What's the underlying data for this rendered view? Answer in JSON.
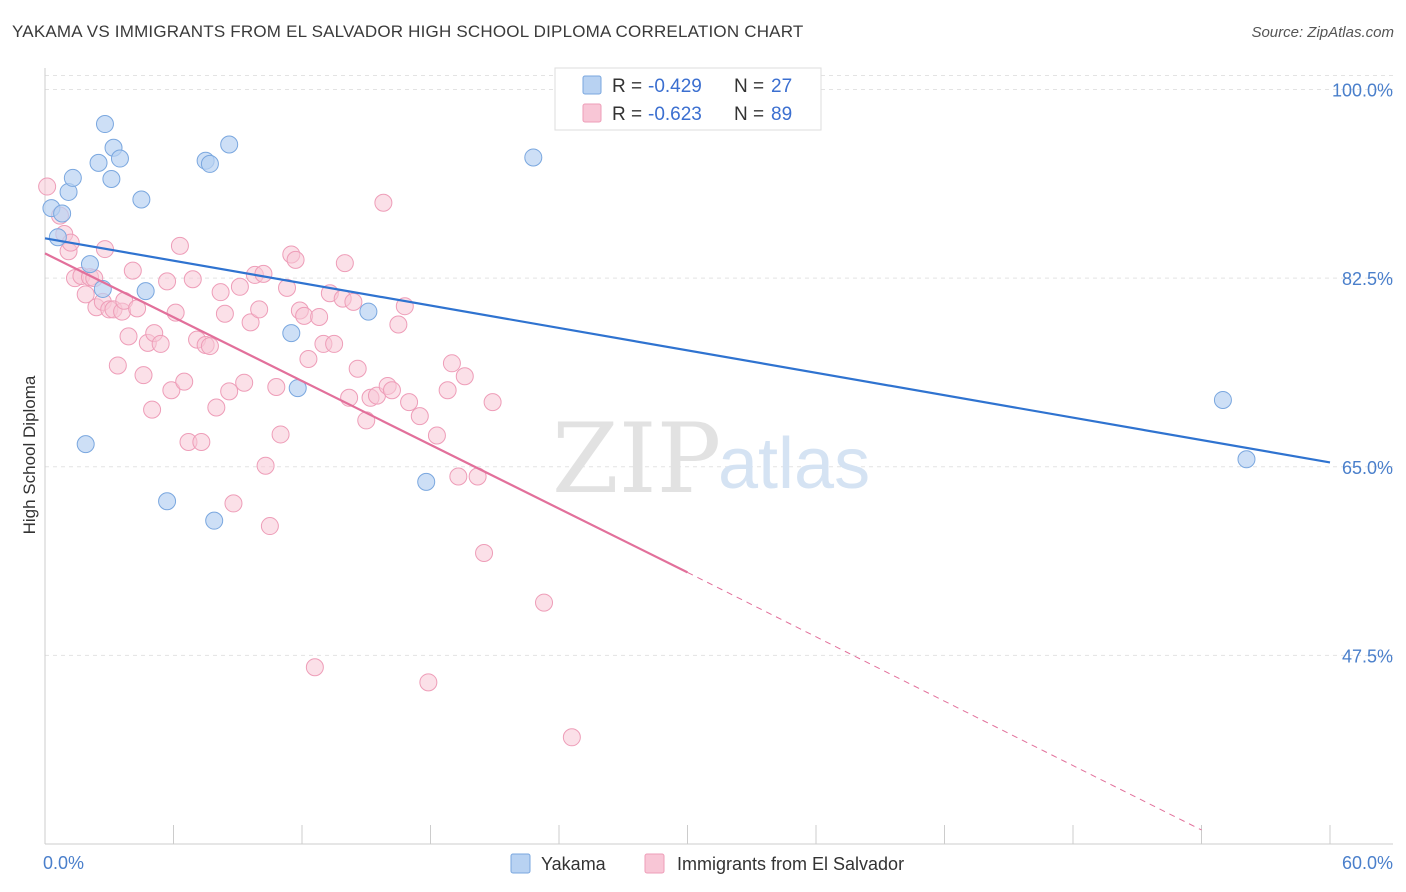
{
  "header": {
    "title": "YAKAMA VS IMMIGRANTS FROM EL SALVADOR HIGH SCHOOL DIPLOMA CORRELATION CHART",
    "source": "Source: ZipAtlas.com"
  },
  "watermark": {
    "zip": "ZIP",
    "atlas": "atlas"
  },
  "legend": {
    "rows": [
      {
        "r_label": "R =",
        "r_value": "-0.429",
        "n_label": "N =",
        "n_value": "27"
      },
      {
        "r_label": "R =",
        "r_value": "-0.623",
        "n_label": "N =",
        "n_value": "89"
      }
    ]
  },
  "colors": {
    "yakama_fill": "#b8d2f2",
    "yakama_stroke": "#7aa7df",
    "yakama_line": "#2f73d0",
    "salvador_fill": "#f8c6d6",
    "salvador_stroke": "#ee9db8",
    "salvador_line": "#e2709b",
    "grid": "#e3e3e3",
    "tick_label": "#4a7fcb"
  },
  "chart_data": {
    "type": "scatter",
    "title": "YAKAMA VS IMMIGRANTS FROM EL SALVADOR HIGH SCHOOL DIPLOMA CORRELATION CHART",
    "xlabel": "",
    "ylabel": "High School Diploma",
    "xlim": [
      0,
      60
    ],
    "ylim": [
      30,
      102
    ],
    "x_tick_labels": [
      "0.0%",
      "60.0%"
    ],
    "y_ticks": [
      47.5,
      65.0,
      82.5,
      100.0
    ],
    "y_tick_labels": [
      "47.5%",
      "65.0%",
      "82.5%",
      "100.0%"
    ],
    "grid": true,
    "legend_position": "top-center",
    "series": [
      {
        "name": "Yakama",
        "r": -0.429,
        "n": 27,
        "trend": {
          "x": [
            0,
            60
          ],
          "y": [
            86.2,
            65.4
          ]
        },
        "points": [
          [
            0.3,
            89.0
          ],
          [
            0.6,
            86.3
          ],
          [
            0.8,
            88.5
          ],
          [
            1.1,
            90.5
          ],
          [
            1.3,
            91.8
          ],
          [
            1.9,
            67.1
          ],
          [
            2.1,
            83.8
          ],
          [
            2.5,
            93.2
          ],
          [
            2.7,
            81.5
          ],
          [
            2.8,
            96.8
          ],
          [
            3.1,
            91.7
          ],
          [
            3.2,
            94.6
          ],
          [
            3.5,
            93.6
          ],
          [
            4.5,
            89.8
          ],
          [
            4.7,
            81.3
          ],
          [
            5.7,
            61.8
          ],
          [
            7.5,
            93.4
          ],
          [
            7.7,
            93.1
          ],
          [
            7.9,
            60.0
          ],
          [
            8.6,
            94.9
          ],
          [
            11.5,
            77.4
          ],
          [
            11.8,
            72.3
          ],
          [
            15.1,
            79.4
          ],
          [
            17.8,
            63.6
          ],
          [
            22.8,
            93.7
          ],
          [
            55.0,
            71.2
          ],
          [
            56.1,
            65.7
          ]
        ]
      },
      {
        "name": "Immigrants from El Salvador",
        "r": -0.623,
        "n": 89,
        "trend": {
          "x": [
            0,
            30
          ],
          "y": [
            84.8,
            55.2
          ]
        },
        "trend_dashed": {
          "x": [
            30,
            54
          ],
          "y": [
            55.2,
            31.3
          ]
        },
        "points": [
          [
            0.1,
            91.0
          ],
          [
            0.7,
            88.3
          ],
          [
            0.9,
            86.6
          ],
          [
            1.1,
            85.0
          ],
          [
            1.2,
            85.8
          ],
          [
            1.4,
            82.5
          ],
          [
            1.7,
            82.7
          ],
          [
            1.9,
            81.0
          ],
          [
            2.1,
            82.6
          ],
          [
            2.3,
            82.5
          ],
          [
            2.4,
            79.8
          ],
          [
            2.7,
            80.3
          ],
          [
            2.8,
            85.2
          ],
          [
            3.0,
            79.6
          ],
          [
            3.2,
            79.6
          ],
          [
            3.4,
            74.4
          ],
          [
            3.6,
            79.4
          ],
          [
            3.7,
            80.4
          ],
          [
            3.9,
            77.1
          ],
          [
            4.1,
            83.2
          ],
          [
            4.3,
            79.7
          ],
          [
            4.6,
            73.5
          ],
          [
            4.8,
            76.5
          ],
          [
            5.0,
            70.3
          ],
          [
            5.1,
            77.4
          ],
          [
            5.4,
            76.4
          ],
          [
            5.7,
            82.2
          ],
          [
            5.9,
            72.1
          ],
          [
            6.1,
            79.3
          ],
          [
            6.3,
            85.5
          ],
          [
            6.5,
            72.9
          ],
          [
            6.7,
            67.3
          ],
          [
            6.9,
            82.4
          ],
          [
            7.1,
            76.8
          ],
          [
            7.3,
            67.3
          ],
          [
            7.5,
            76.3
          ],
          [
            7.7,
            76.2
          ],
          [
            8.0,
            70.5
          ],
          [
            8.2,
            81.2
          ],
          [
            8.4,
            79.2
          ],
          [
            8.6,
            72.0
          ],
          [
            8.8,
            61.6
          ],
          [
            9.1,
            81.7
          ],
          [
            9.3,
            72.8
          ],
          [
            9.6,
            78.4
          ],
          [
            9.8,
            82.8
          ],
          [
            10.0,
            79.6
          ],
          [
            10.2,
            82.9
          ],
          [
            10.3,
            65.1
          ],
          [
            10.5,
            59.5
          ],
          [
            10.8,
            72.4
          ],
          [
            11.0,
            68.0
          ],
          [
            11.3,
            81.6
          ],
          [
            11.5,
            84.7
          ],
          [
            11.7,
            84.2
          ],
          [
            11.9,
            79.5
          ],
          [
            12.1,
            79.0
          ],
          [
            12.3,
            75.0
          ],
          [
            12.6,
            46.4
          ],
          [
            12.8,
            78.9
          ],
          [
            13.0,
            76.4
          ],
          [
            13.3,
            81.1
          ],
          [
            13.5,
            76.4
          ],
          [
            13.9,
            80.6
          ],
          [
            14.0,
            83.9
          ],
          [
            14.2,
            71.4
          ],
          [
            14.4,
            80.3
          ],
          [
            14.6,
            74.1
          ],
          [
            15.0,
            69.3
          ],
          [
            15.2,
            71.4
          ],
          [
            15.5,
            71.6
          ],
          [
            15.8,
            89.5
          ],
          [
            16.0,
            72.5
          ],
          [
            16.2,
            72.1
          ],
          [
            16.5,
            78.2
          ],
          [
            16.8,
            79.9
          ],
          [
            17.0,
            71.0
          ],
          [
            17.5,
            69.7
          ],
          [
            17.9,
            45.0
          ],
          [
            18.3,
            67.9
          ],
          [
            18.8,
            72.1
          ],
          [
            19.0,
            74.6
          ],
          [
            19.3,
            64.1
          ],
          [
            19.6,
            73.4
          ],
          [
            20.2,
            64.1
          ],
          [
            20.5,
            57.0
          ],
          [
            20.9,
            71.0
          ],
          [
            23.3,
            52.4
          ],
          [
            24.6,
            39.9
          ]
        ]
      }
    ]
  }
}
